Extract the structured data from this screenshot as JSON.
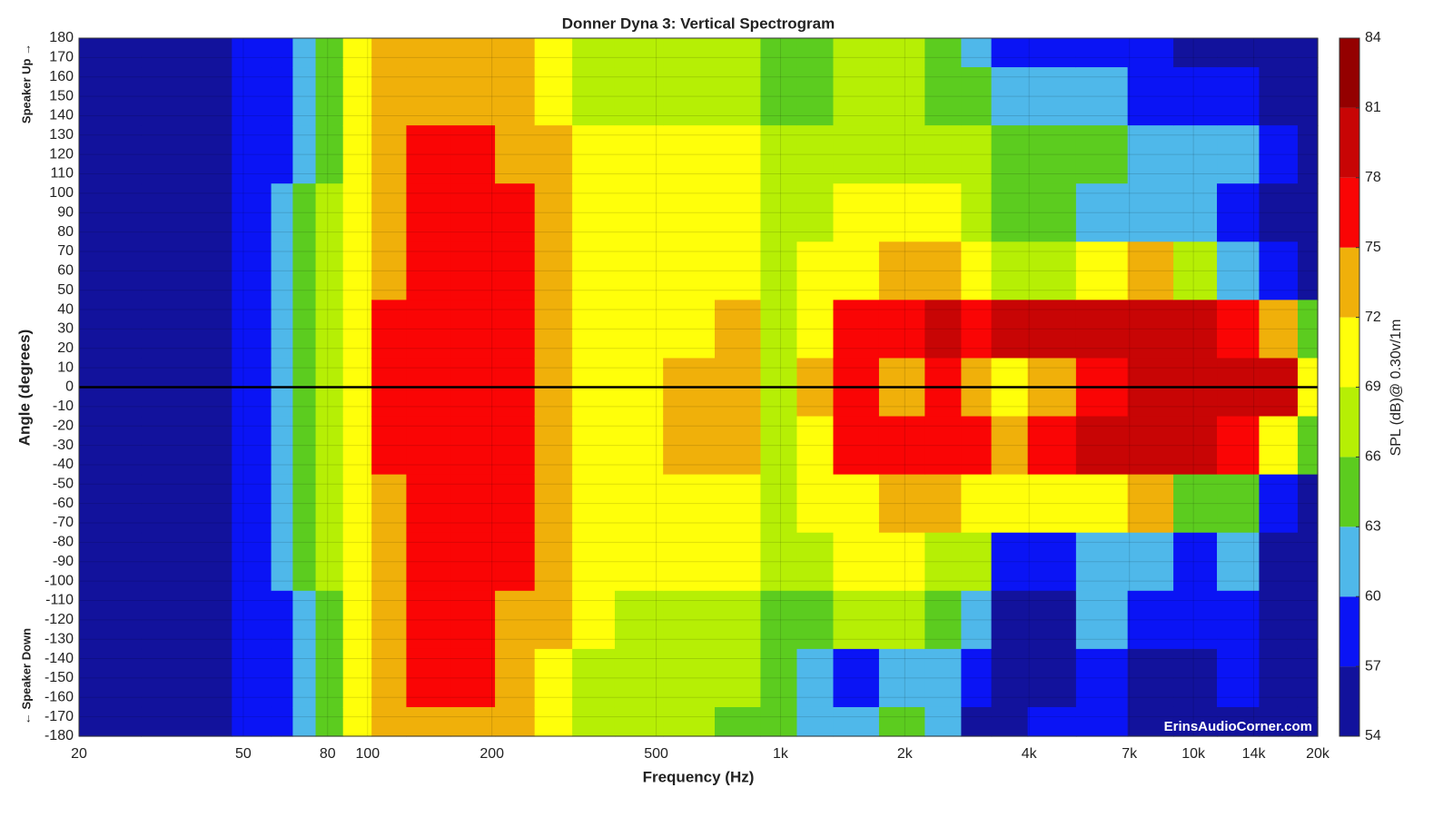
{
  "chart_data": {
    "type": "contour",
    "title": "Donner Dyna 3: Vertical Spectrogram",
    "x_label": "Frequency (Hz)",
    "y_label": "Angle (degrees)",
    "colorbar_label": "SPL (dB)@ 0.30v/1m",
    "annotations": [
      "Speaker Up →",
      "← Speaker Down",
      "ErinsAudioCorner.com"
    ],
    "x_scale": "log",
    "grid": true,
    "reference_line": 0,
    "xlim": [
      20,
      20000
    ],
    "xticks": [
      20,
      50,
      80,
      100,
      200,
      500,
      {
        "value": 1000,
        "label": "1k"
      },
      {
        "value": 2000,
        "label": "2k"
      },
      {
        "value": 4000,
        "label": "4k"
      },
      {
        "value": 7000,
        "label": "7k"
      },
      {
        "value": 10000,
        "label": "10k"
      },
      {
        "value": 14000,
        "label": "14k"
      },
      {
        "value": 20000,
        "label": "20k"
      }
    ],
    "ylim": [
      -180,
      180
    ],
    "yticks": [
      -180,
      -170,
      -160,
      -150,
      -140,
      -130,
      -120,
      -110,
      -100,
      -90,
      -80,
      -70,
      -60,
      -50,
      -40,
      -30,
      -20,
      -10,
      0,
      10,
      20,
      30,
      40,
      50,
      60,
      70,
      80,
      90,
      100,
      110,
      120,
      130,
      140,
      150,
      160,
      170,
      180
    ],
    "levels": [
      54,
      57,
      60,
      63,
      66,
      69,
      72,
      75,
      78,
      81,
      84
    ],
    "colors": [
      "#12129c",
      "#0a14f5",
      "#4fb8ea",
      "#5ccc1f",
      "#b6ef05",
      "#ffff0a",
      "#f0b00a",
      "#fa0505",
      "#c80505",
      "#940000"
    ],
    "x": [
      20,
      40,
      55,
      62,
      70,
      80,
      95,
      110,
      140,
      180,
      230,
      280,
      350,
      450,
      600,
      800,
      1000,
      1200,
      1500,
      2000,
      2500,
      3000,
      3500,
      4500,
      6000,
      8000,
      10000,
      13000,
      16000,
      20000
    ],
    "y": [
      180,
      150,
      120,
      90,
      60,
      30,
      0,
      -30,
      -60,
      -90,
      -120,
      -150,
      -180
    ],
    "z": [
      [
        55,
        55,
        55,
        55,
        55,
        55,
        55,
        55,
        55,
        55,
        55,
        55,
        55
      ],
      [
        55,
        55,
        55,
        55,
        55,
        55,
        55,
        55,
        55,
        55,
        55,
        55,
        55
      ],
      [
        57,
        57,
        57,
        57,
        57.5,
        57.5,
        57.5,
        57.5,
        57.5,
        57,
        57,
        57,
        57
      ],
      [
        59,
        59,
        59.5,
        60,
        60,
        60.5,
        60.5,
        60.5,
        60,
        60,
        59.5,
        59,
        59
      ],
      [
        62,
        62,
        62.5,
        63,
        63,
        63.5,
        63.5,
        63.5,
        63,
        63,
        62.5,
        62,
        62
      ],
      [
        65,
        65,
        65.5,
        66,
        66,
        66.5,
        66.5,
        66.5,
        66,
        66,
        65.5,
        65,
        65
      ],
      [
        69,
        69,
        69.5,
        70,
        70,
        70.5,
        70.5,
        70.5,
        70,
        70,
        69.5,
        69,
        69
      ],
      [
        72.5,
        73,
        73.5,
        74,
        74.5,
        75,
        75.5,
        75,
        74.5,
        74,
        73.5,
        73,
        72.5
      ],
      [
        73.5,
        74,
        75.5,
        76.5,
        77,
        77,
        77,
        77,
        77,
        76.5,
        75.5,
        75,
        74
      ],
      [
        73.5,
        74.5,
        76,
        76.5,
        77,
        77,
        77,
        77,
        77,
        76.5,
        76,
        75,
        74
      ],
      [
        72,
        72.5,
        74,
        75,
        75.5,
        75.5,
        75.5,
        75.5,
        75.5,
        75,
        74,
        72.5,
        72
      ],
      [
        70,
        71,
        72,
        73,
        73.5,
        73.5,
        73.5,
        73.5,
        73.5,
        73,
        72,
        71,
        70
      ],
      [
        67,
        68,
        69,
        70,
        70.5,
        70.5,
        70.5,
        70.5,
        70.5,
        70,
        69,
        68,
        67
      ],
      [
        67,
        68,
        69,
        70,
        70.5,
        70.5,
        70.5,
        70.5,
        70.5,
        70,
        68.5,
        67.5,
        67
      ],
      [
        67,
        68,
        69.5,
        70,
        70.5,
        71,
        72.5,
        72.5,
        70.5,
        70,
        68.5,
        67.5,
        67
      ],
      [
        66,
        67,
        69,
        70,
        70.5,
        72.5,
        72.5,
        72.5,
        71,
        70,
        68,
        66.5,
        65
      ],
      [
        64.5,
        65,
        66,
        66,
        66.5,
        67,
        68,
        67,
        66.5,
        66,
        65,
        64,
        63.5
      ],
      [
        64,
        65,
        67,
        68,
        69,
        71,
        72,
        71,
        69,
        67,
        65,
        62,
        61
      ],
      [
        66,
        66,
        67,
        69,
        71,
        75.5,
        76,
        76,
        71,
        69,
        66,
        59,
        60
      ],
      [
        67,
        66,
        68,
        70,
        73,
        76,
        73,
        76,
        73,
        69,
        66,
        62,
        63
      ],
      [
        64,
        65,
        67,
        69,
        74,
        79,
        77,
        77,
        74,
        68,
        64,
        60,
        62
      ],
      [
        62,
        63,
        66,
        68,
        70,
        76,
        72,
        75,
        70,
        66,
        62,
        57,
        56
      ],
      [
        58,
        60,
        64,
        65,
        68,
        78,
        69,
        74,
        69,
        57,
        56,
        56,
        55
      ],
      [
        58,
        62,
        63,
        64,
        67,
        78,
        73,
        76,
        69,
        57,
        56,
        55,
        57
      ],
      [
        59,
        61,
        63,
        62,
        70,
        78.5,
        76,
        78,
        70,
        62,
        61,
        59,
        57
      ],
      [
        58,
        57,
        61,
        61,
        73,
        79,
        79.5,
        79,
        72,
        60,
        58,
        56,
        55
      ],
      [
        56,
        57,
        60,
        60,
        68,
        78.5,
        79,
        78,
        64,
        57,
        59,
        56,
        55
      ],
      [
        56,
        58,
        61,
        57,
        62,
        77,
        80,
        75,
        64,
        60,
        58,
        57,
        56
      ],
      [
        55,
        56,
        58,
        55,
        59,
        72,
        78,
        69,
        58,
        55,
        55,
        56,
        55
      ],
      [
        55,
        55,
        55,
        55,
        56,
        63,
        70,
        64,
        56,
        55,
        55,
        55,
        55
      ]
    ]
  }
}
